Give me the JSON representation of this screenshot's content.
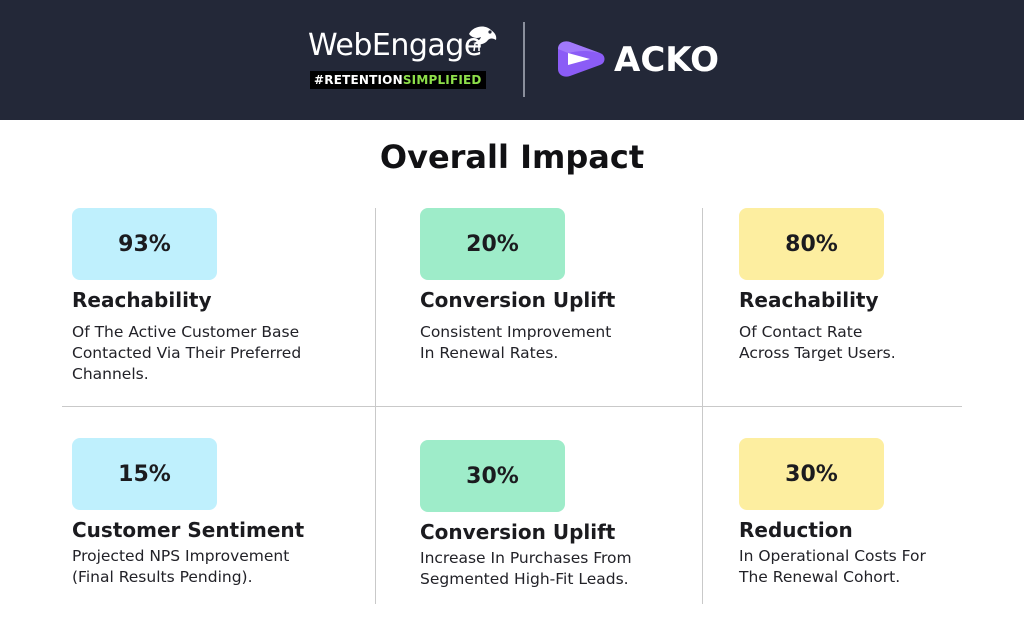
{
  "header": {
    "webengage": {
      "name": "WebEngage",
      "tag_part1": "#RETENTION",
      "tag_part2": "SIMPLIFIED"
    },
    "acko": {
      "name": "ACKO"
    },
    "colors": {
      "background": "#232838",
      "acko_purple": "#8b5cf6",
      "tag_green": "#8ee04a"
    }
  },
  "title": "Overall Impact",
  "cards": [
    {
      "value": "93%",
      "title": "Reachability",
      "desc": [
        "Of The Active Customer Base",
        "Contacted Via Their Preferred",
        "Channels."
      ],
      "color": "#bff0fd"
    },
    {
      "value": "20%",
      "title": "Conversion Uplift",
      "desc": [
        "Consistent Improvement",
        "In Renewal Rates."
      ],
      "color": "#9eecc9"
    },
    {
      "value": "80%",
      "title": "Reachability",
      "desc": [
        "Of Contact Rate",
        "Across Target Users."
      ],
      "color": "#fdeea0"
    },
    {
      "value": "15%",
      "title": "Customer Sentiment",
      "desc": [
        "Projected NPS Improvement",
        "(Final Results Pending)."
      ],
      "color": "#bff0fd"
    },
    {
      "value": "30%",
      "title": "Conversion Uplift",
      "desc": [
        "Increase In Purchases From",
        "Segmented High-Fit Leads."
      ],
      "color": "#9eecc9"
    },
    {
      "value": "30%",
      "title": "Reduction",
      "desc": [
        "In Operational Costs For",
        "The Renewal Cohort."
      ],
      "color": "#fdeea0"
    }
  ]
}
